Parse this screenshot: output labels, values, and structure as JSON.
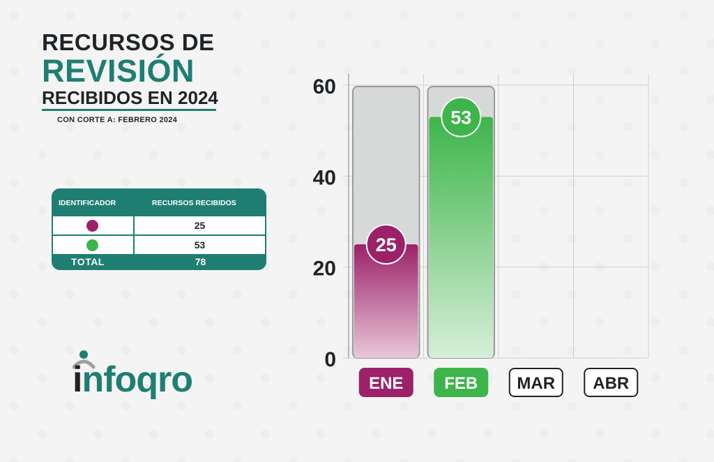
{
  "title": {
    "line1": "RECURSOS DE",
    "line2": "REVISIÓN",
    "line3": "RECIBIDOS EN 2024"
  },
  "subtitle": "CON CORTE A: FEBRERO 2024",
  "table": {
    "headers": [
      "IDENTIFICADOR",
      "RECURSOS RECIBIDOS"
    ],
    "rows": [
      {
        "color": "#9c2169",
        "value": "25"
      },
      {
        "color": "#3db54a",
        "value": "53"
      }
    ],
    "total_label": "TOTAL",
    "total_value": "78"
  },
  "logo": {
    "text_i": "i",
    "text_rest": "nfoqro"
  },
  "colors": {
    "teal": "#1e7e72",
    "magenta": "#9c2169",
    "green": "#3db54a",
    "dark": "#1f2326"
  },
  "chart_data": {
    "type": "bar",
    "categories": [
      "ENE",
      "FEB",
      "MAR",
      "ABR"
    ],
    "values": [
      25,
      53,
      null,
      null
    ],
    "bar_colors": [
      "#9c2169",
      "#3db54a",
      null,
      null
    ],
    "ylim": [
      0,
      60
    ],
    "yticks": [
      0,
      20,
      40,
      60
    ],
    "grid": true,
    "xlabel": "",
    "ylabel": ""
  }
}
